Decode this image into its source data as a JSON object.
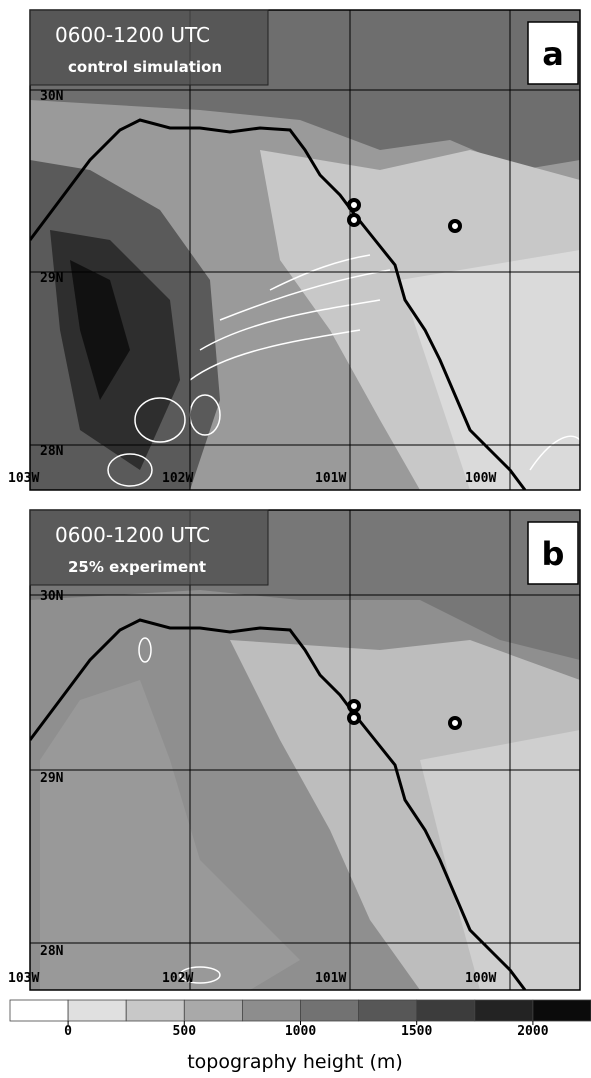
{
  "panels": [
    {
      "title": "0600-1200 UTC",
      "subtitle": "control simulation",
      "label": "a",
      "lat_labels": [
        "30N",
        "29N",
        "28N"
      ],
      "lon_labels": [
        "103W",
        "102W",
        "101W",
        "100W"
      ]
    },
    {
      "title": "0600-1200 UTC",
      "subtitle": "25% experiment",
      "label": "b",
      "lat_labels": [
        "30N",
        "29N",
        "28N"
      ],
      "lon_labels": [
        "103W",
        "102W",
        "101W",
        "100W"
      ]
    }
  ],
  "colorbar": {
    "title": "topography height (m)",
    "bounds": [
      -250,
      0,
      250,
      500,
      750,
      1000,
      1250,
      1500,
      1750,
      2000,
      2250
    ],
    "colors": [
      "#ffffff",
      "#e0e0e0",
      "#c8c8c8",
      "#a9a9a9",
      "#8d8d8d",
      "#727272",
      "#575757",
      "#3c3c3c",
      "#232323",
      "#0b0b0b"
    ],
    "ticks": [
      0,
      500,
      1000,
      1500,
      2000
    ]
  }
}
